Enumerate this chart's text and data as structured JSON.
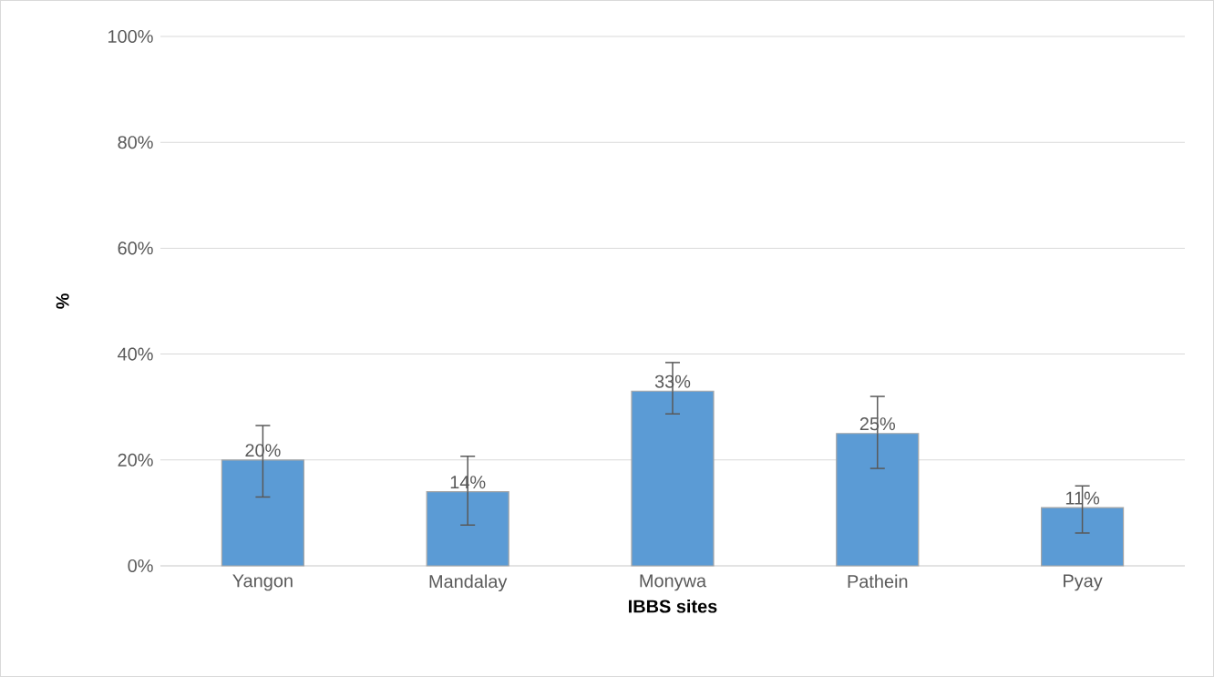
{
  "chart_data": {
    "type": "bar",
    "xlabel": "IBBS sites",
    "ylabel": "%",
    "categories": [
      "Yangon",
      "Mandalay",
      "Monywa",
      "Pathein",
      "Pyay"
    ],
    "values": [
      20,
      14,
      33,
      25,
      11
    ],
    "value_labels": [
      "20%",
      "14%",
      "33%",
      "25%",
      "11%"
    ],
    "errors": [
      [
        13,
        26.5
      ],
      [
        7.7,
        20.7
      ],
      [
        28.7,
        38.4
      ],
      [
        18.4,
        32
      ],
      [
        6.2,
        15.1
      ]
    ],
    "color": "#5b9bd5",
    "ylim": [
      0,
      100
    ],
    "yticks": [
      {
        "value": 0,
        "label": "0%"
      },
      {
        "value": 20,
        "label": "20%"
      },
      {
        "value": 40,
        "label": "40%"
      },
      {
        "value": 60,
        "label": "60%"
      },
      {
        "value": 80,
        "label": "80%"
      },
      {
        "value": 100,
        "label": "100%"
      }
    ],
    "grid": "y"
  }
}
